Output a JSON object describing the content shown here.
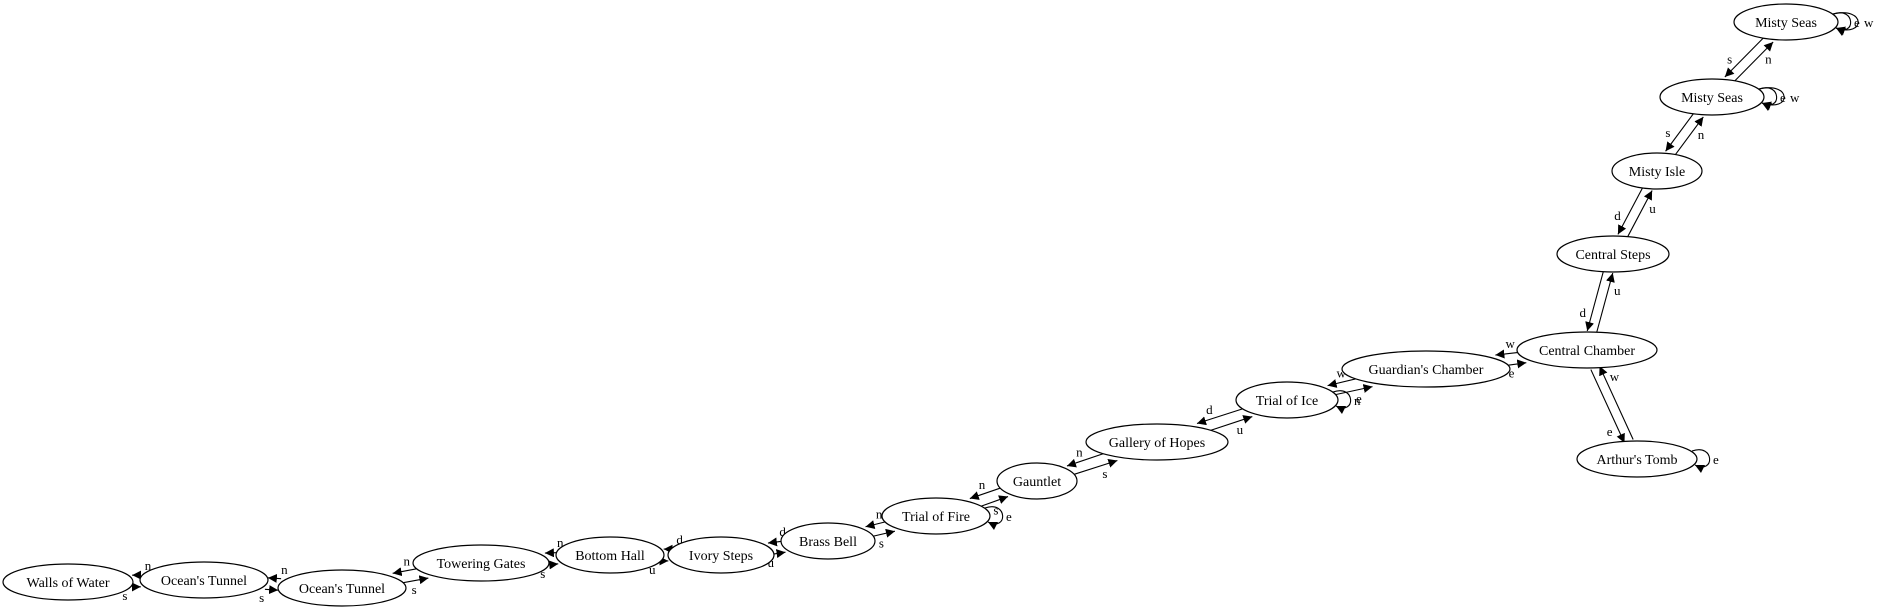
{
  "graph": {
    "nodes": [
      {
        "id": "walls",
        "label": "Walls of Water"
      },
      {
        "id": "ocean1",
        "label": "Ocean's Tunnel"
      },
      {
        "id": "ocean2",
        "label": "Ocean's Tunnel"
      },
      {
        "id": "towering",
        "label": "Towering Gates"
      },
      {
        "id": "bottom",
        "label": "Bottom Hall"
      },
      {
        "id": "ivory",
        "label": "Ivory Steps"
      },
      {
        "id": "brass",
        "label": "Brass Bell"
      },
      {
        "id": "fire",
        "label": "Trial of Fire"
      },
      {
        "id": "gauntlet",
        "label": "Gauntlet"
      },
      {
        "id": "gallery",
        "label": "Gallery of Hopes"
      },
      {
        "id": "ice",
        "label": "Trial of Ice"
      },
      {
        "id": "guardian",
        "label": "Guardian's Chamber"
      },
      {
        "id": "central",
        "label": "Central Chamber"
      },
      {
        "id": "arthur",
        "label": "Arthur's Tomb"
      },
      {
        "id": "steps",
        "label": "Central Steps"
      },
      {
        "id": "isle",
        "label": "Misty Isle"
      },
      {
        "id": "seas1",
        "label": "Misty Seas"
      },
      {
        "id": "seas2",
        "label": "Misty Seas"
      }
    ],
    "edges": [
      {
        "from": "walls",
        "to": "ocean1",
        "label": "s"
      },
      {
        "from": "ocean1",
        "to": "walls",
        "label": "n"
      },
      {
        "from": "ocean1",
        "to": "ocean2",
        "label": "s"
      },
      {
        "from": "ocean2",
        "to": "ocean1",
        "label": "n"
      },
      {
        "from": "ocean2",
        "to": "towering",
        "label": "s"
      },
      {
        "from": "towering",
        "to": "ocean2",
        "label": "n"
      },
      {
        "from": "towering",
        "to": "bottom",
        "label": "s"
      },
      {
        "from": "bottom",
        "to": "towering",
        "label": "n"
      },
      {
        "from": "bottom",
        "to": "ivory",
        "label": "u"
      },
      {
        "from": "ivory",
        "to": "bottom",
        "label": "d"
      },
      {
        "from": "ivory",
        "to": "brass",
        "label": "u"
      },
      {
        "from": "brass",
        "to": "ivory",
        "label": "d"
      },
      {
        "from": "brass",
        "to": "fire",
        "label": "s"
      },
      {
        "from": "fire",
        "to": "brass",
        "label": "n"
      },
      {
        "from": "fire",
        "to": "fire",
        "label": "e"
      },
      {
        "from": "fire",
        "to": "gauntlet",
        "label": "s"
      },
      {
        "from": "gauntlet",
        "to": "fire",
        "label": "n"
      },
      {
        "from": "gauntlet",
        "to": "gallery",
        "label": "s"
      },
      {
        "from": "gallery",
        "to": "gauntlet",
        "label": "n"
      },
      {
        "from": "gallery",
        "to": "ice",
        "label": "u"
      },
      {
        "from": "ice",
        "to": "gallery",
        "label": "d"
      },
      {
        "from": "ice",
        "to": "ice",
        "label": "n"
      },
      {
        "from": "ice",
        "to": "guardian",
        "label": "e"
      },
      {
        "from": "guardian",
        "to": "ice",
        "label": "w"
      },
      {
        "from": "guardian",
        "to": "central",
        "label": "e"
      },
      {
        "from": "central",
        "to": "guardian",
        "label": "w"
      },
      {
        "from": "central",
        "to": "arthur",
        "label": "e"
      },
      {
        "from": "arthur",
        "to": "central",
        "label": "w"
      },
      {
        "from": "arthur",
        "to": "arthur",
        "label": "e"
      },
      {
        "from": "central",
        "to": "steps",
        "label": "u"
      },
      {
        "from": "steps",
        "to": "central",
        "label": "d"
      },
      {
        "from": "steps",
        "to": "isle",
        "label": "u"
      },
      {
        "from": "isle",
        "to": "steps",
        "label": "d"
      },
      {
        "from": "isle",
        "to": "seas1",
        "label": "n"
      },
      {
        "from": "seas1",
        "to": "isle",
        "label": "s"
      },
      {
        "from": "seas1",
        "to": "seas1",
        "label": "e"
      },
      {
        "from": "seas1",
        "to": "seas1",
        "label": "w"
      },
      {
        "from": "seas1",
        "to": "seas2",
        "label": "n"
      },
      {
        "from": "seas2",
        "to": "seas1",
        "label": "s"
      },
      {
        "from": "seas2",
        "to": "seas2",
        "label": "e"
      },
      {
        "from": "seas2",
        "to": "seas2",
        "label": "w"
      }
    ]
  }
}
